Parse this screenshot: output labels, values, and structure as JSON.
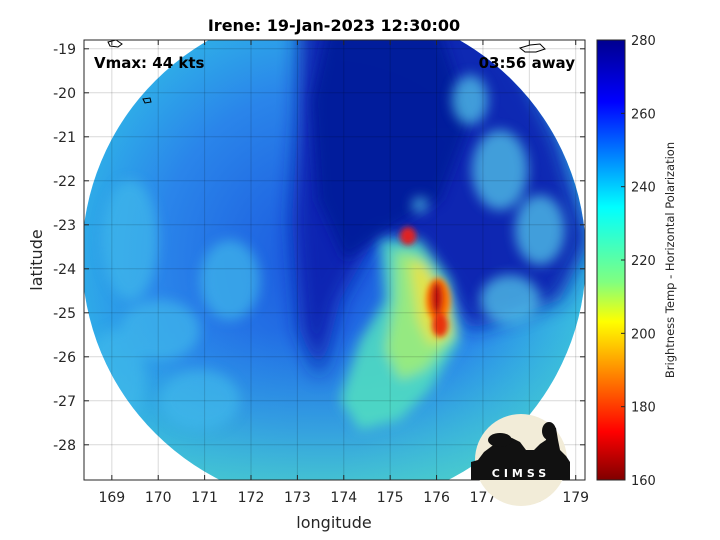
{
  "chart_data": {
    "type": "heatmap",
    "title": "Irene: 19-Jan-2023 12:30:00",
    "xlabel": "longitude",
    "ylabel": "latitude",
    "xlim": [
      168.4,
      179.2
    ],
    "ylim": [
      -28.8,
      -18.8
    ],
    "xticks": [
      169,
      170,
      171,
      172,
      173,
      174,
      175,
      176,
      177,
      178,
      179
    ],
    "yticks": [
      -19,
      -20,
      -21,
      -22,
      -23,
      -24,
      -25,
      -26,
      -27,
      -28
    ],
    "xtick_labels": [
      "169",
      "170",
      "171",
      "172",
      "173",
      "174",
      "175",
      "176",
      "177",
      "178",
      "179"
    ],
    "ytick_labels": [
      "-19",
      "-20",
      "-21",
      "-22",
      "-23",
      "-24",
      "-25",
      "-26",
      "-27",
      "-28"
    ],
    "grid": true,
    "colorbar": {
      "label": "Brightness Temp - Horizontal Polarization",
      "range": [
        160,
        280
      ],
      "ticks": [
        160,
        180,
        200,
        220,
        240,
        260,
        280
      ],
      "tick_labels": [
        "160",
        "180",
        "200",
        "220",
        "240",
        "260",
        "280"
      ],
      "colormap": "jet"
    },
    "annotations": {
      "vmax": "Vmax: 44 kts",
      "time_away": "03:56 away"
    },
    "swath_center": [
      173.8,
      -24.2
    ],
    "cold_cores": [
      {
        "lon": 175.4,
        "lat": -23.2,
        "value": 182
      },
      {
        "lon": 176.1,
        "lat": -24.6,
        "value": 176
      },
      {
        "lon": 176.2,
        "lat": -25.4,
        "value": 188
      }
    ]
  },
  "logo": {
    "text": "CIMSS"
  },
  "colors": {
    "axes_edge": "#262626",
    "grid": "#d9d9d9",
    "cold_band": "#0a20a8",
    "outer_field": "#2a8fe6",
    "coast": "#000000"
  }
}
